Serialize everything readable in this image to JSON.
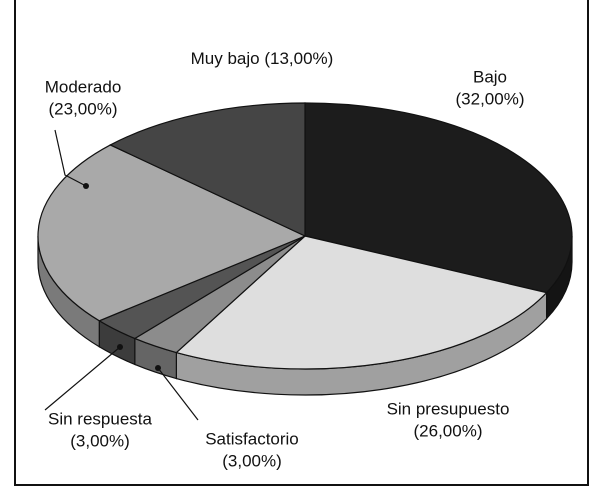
{
  "chart_data": {
    "type": "pie",
    "categories": [
      "Bajo",
      "Sin presupuesto",
      "Satisfactorio",
      "Sin respuesta",
      "Moderado",
      "Muy bajo"
    ],
    "values": [
      32,
      26,
      3,
      3,
      23,
      13
    ],
    "value_labels": [
      "(32,00%)",
      "(26,00%)",
      "(3,00%)",
      "(3,00%)",
      "(23,00%)",
      "(13,00%)"
    ],
    "colors": [
      "#1c1c1c",
      "#dedede",
      "#8c8c8c",
      "#545454",
      "#a9a9a9",
      "#454545"
    ]
  }
}
